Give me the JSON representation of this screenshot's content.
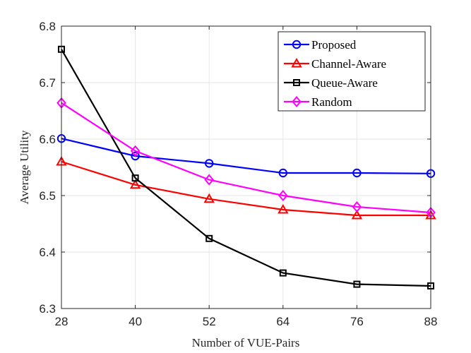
{
  "chart_data": {
    "type": "line",
    "title": "",
    "xlabel": "Number of VUE-Pairs",
    "ylabel": "Average Utility",
    "x": [
      28,
      40,
      52,
      64,
      76,
      88
    ],
    "xticks": [
      "28",
      "40",
      "52",
      "64",
      "76",
      "88"
    ],
    "yticks": [
      "6.3",
      "6.4",
      "6.5",
      "6.6",
      "6.7",
      "6.8"
    ],
    "xlim": [
      28,
      88
    ],
    "ylim": [
      6.3,
      6.8
    ],
    "grid": true,
    "legend_position": "top-right",
    "series": [
      {
        "name": "Proposed",
        "color": "#0000ff",
        "marker": "circle",
        "values": [
          6.601,
          6.57,
          6.557,
          6.54,
          6.54,
          6.539
        ]
      },
      {
        "name": "Channel-Aware",
        "color": "#ff0000",
        "marker": "triangle",
        "values": [
          6.56,
          6.519,
          6.494,
          6.475,
          6.465,
          6.465
        ]
      },
      {
        "name": "Queue-Aware",
        "color": "#000000",
        "marker": "square",
        "values": [
          6.759,
          6.531,
          6.424,
          6.363,
          6.343,
          6.34
        ]
      },
      {
        "name": "Random",
        "color": "#ff00ff",
        "marker": "diamond",
        "values": [
          6.664,
          6.579,
          6.528,
          6.5,
          6.48,
          6.47
        ]
      }
    ]
  }
}
